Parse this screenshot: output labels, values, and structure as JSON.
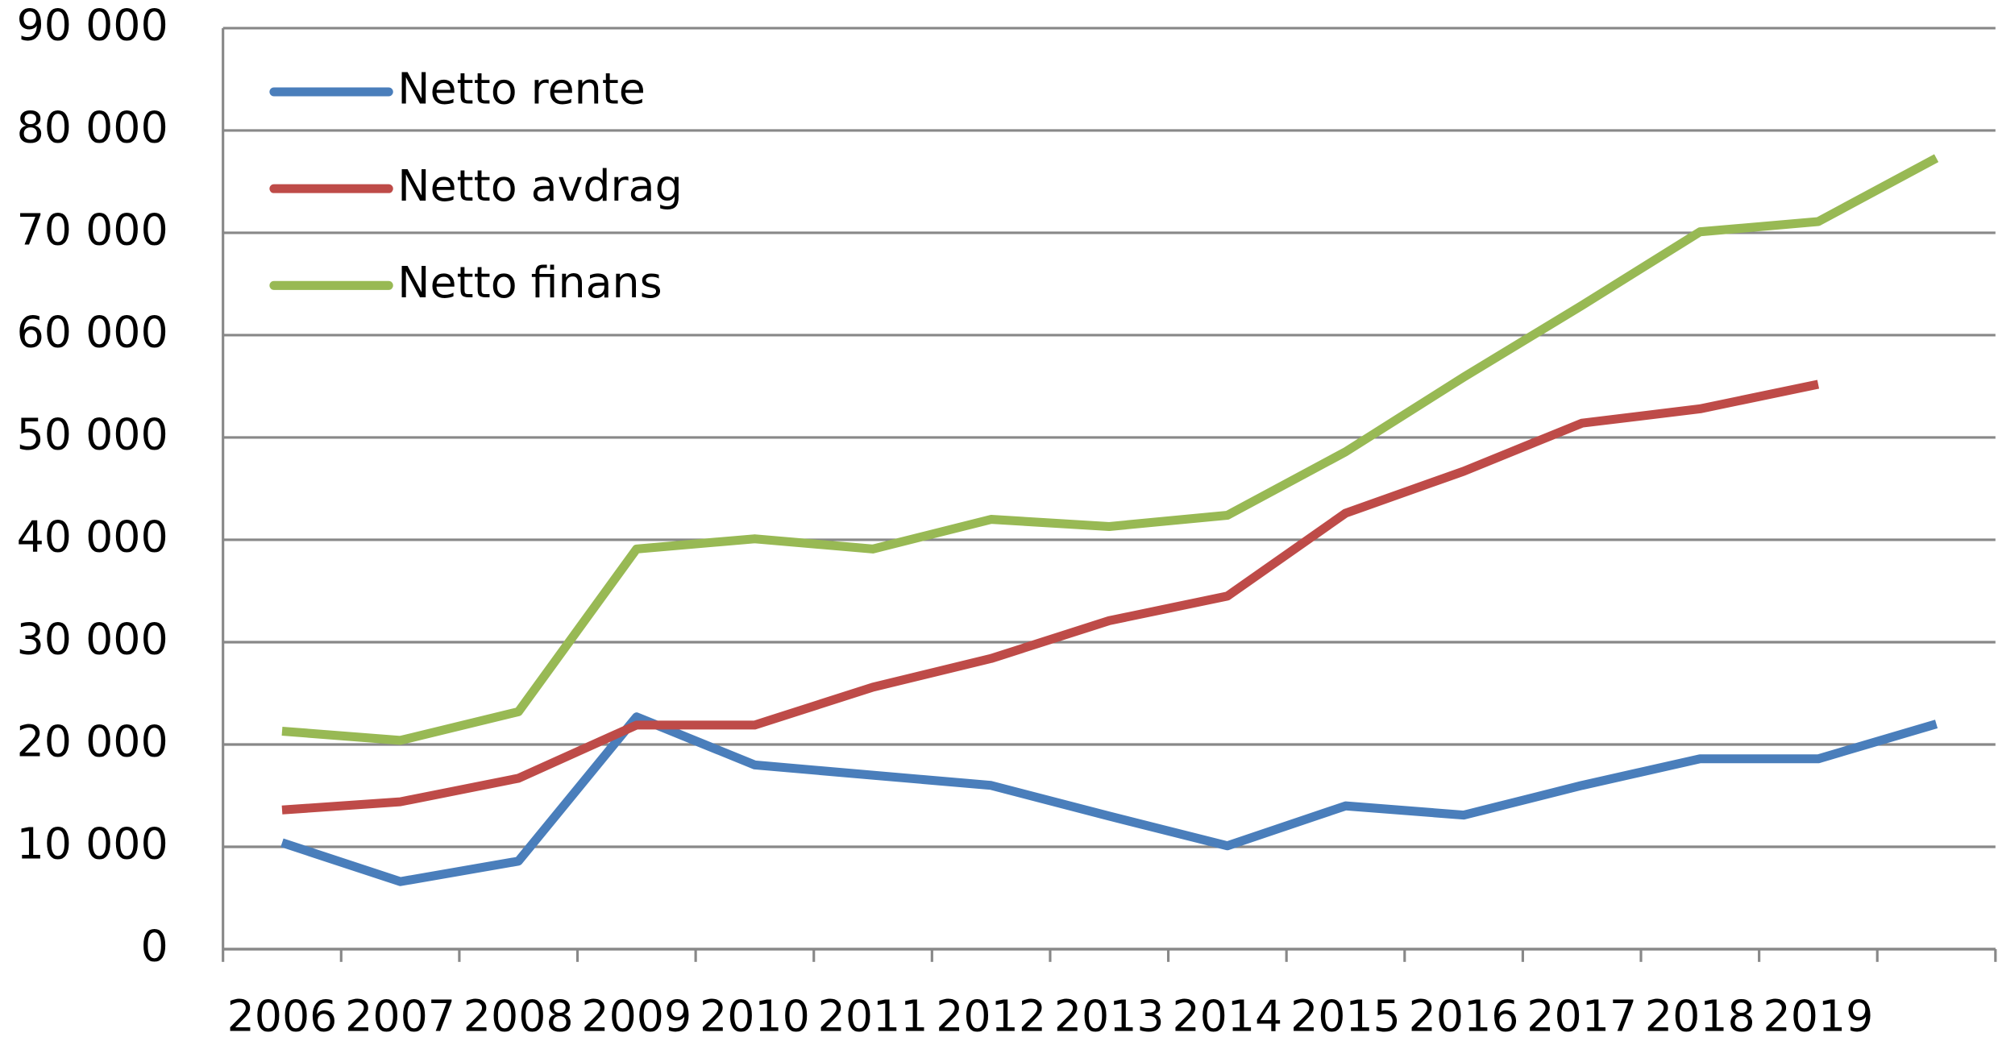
{
  "chart_data": {
    "type": "line",
    "categories": [
      "2006",
      "2007",
      "2008",
      "2009",
      "2010",
      "2011",
      "2012",
      "2013",
      "2014",
      "2015",
      "2016",
      "2017",
      "2018",
      "2019",
      null
    ],
    "series": [
      {
        "name": "Netto rente",
        "color": "#4a7ebb",
        "values": [
          10400,
          6600,
          8600,
          22700,
          18000,
          17000,
          16000,
          13000,
          10100,
          14000,
          13100,
          16000,
          18600,
          18600,
          22000
        ]
      },
      {
        "name": "Netto avdrag",
        "color": "#be4b48",
        "values": [
          13600,
          14400,
          16700,
          21900,
          21900,
          25600,
          28400,
          32100,
          34500,
          42600,
          46700,
          51400,
          52800,
          55200,
          null
        ]
      },
      {
        "name": "Netto finans",
        "color": "#98b954",
        "values": [
          21300,
          20400,
          23200,
          39100,
          40100,
          39100,
          42000,
          41300,
          42400,
          48600,
          55900,
          62900,
          70100,
          71100,
          77300
        ]
      }
    ],
    "ylim": [
      0,
      90000
    ],
    "yticks": [
      0,
      {
        "value": 10000,
        "label": "10 000"
      },
      {
        "value": 20000,
        "label": "20 000"
      },
      {
        "value": 30000,
        "label": "30 000"
      },
      {
        "value": 40000,
        "label": "40 000"
      },
      {
        "value": 50000,
        "label": "50 000"
      },
      {
        "value": 60000,
        "label": "60 000"
      },
      {
        "value": 70000,
        "label": "70 000"
      },
      {
        "value": 80000,
        "label": "80 000"
      },
      {
        "value": 90000,
        "label": "90 000"
      }
    ],
    "grid": true,
    "legend": "top-left"
  }
}
